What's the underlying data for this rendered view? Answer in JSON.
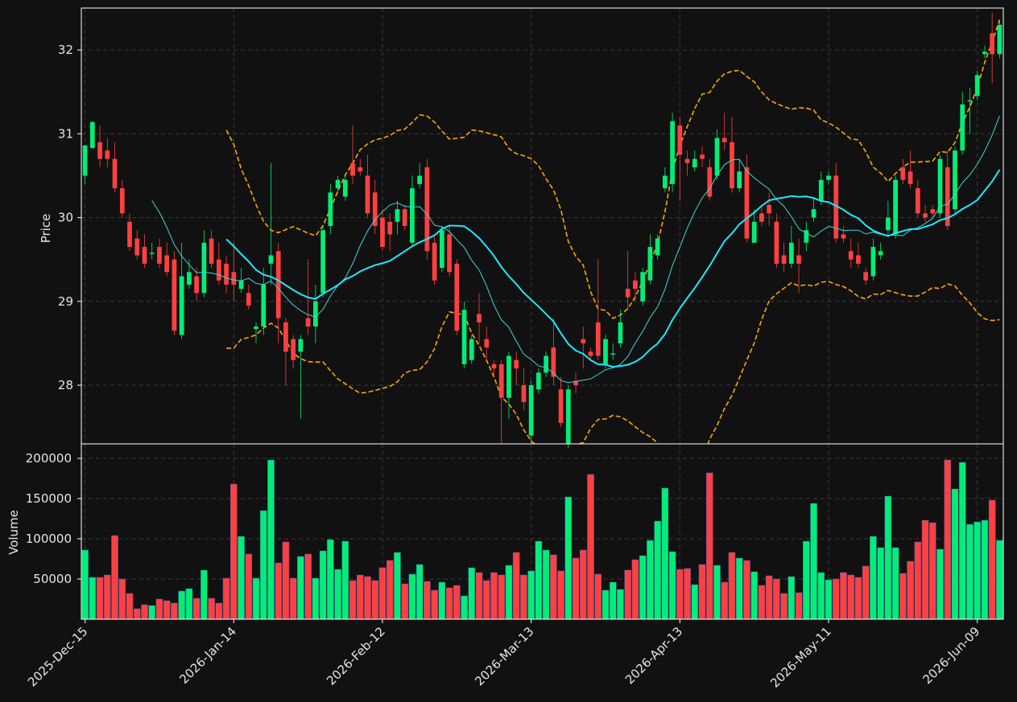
{
  "chart_data": {
    "type": "candlestick",
    "colors": {
      "up": "#00ee76",
      "down": "#ff4040",
      "ma_short": "#3fd6d6",
      "ma_long": "#1de8ff",
      "bands": "#ffa500",
      "background": "#111111",
      "grid": "#3a3a3a",
      "frame": "#ffffff"
    },
    "price_panel": {
      "ylabel": "Price",
      "ylim": [
        27.3,
        32.5
      ],
      "yticks": [
        "28",
        "29",
        "30",
        "31",
        "32"
      ],
      "grid": true
    },
    "volume_panel": {
      "ylabel": "Volume",
      "ylim": [
        0,
        218000
      ],
      "yticks": [
        "50000",
        "100000",
        "150000",
        "200000"
      ],
      "grid": true
    },
    "x_tick_labels": [
      {
        "index": 0,
        "label": "2025-Dec-15"
      },
      {
        "index": 20,
        "label": "2026-Jan-14"
      },
      {
        "index": 40,
        "label": "2026-Feb-12"
      },
      {
        "index": 60,
        "label": "2026-Mar-13"
      },
      {
        "index": 80,
        "label": "2026-Apr-13"
      },
      {
        "index": 100,
        "label": "2026-May-11"
      },
      {
        "index": 120,
        "label": "2026-Jun-09"
      }
    ],
    "candles": [
      [
        30.5,
        30.86,
        30.4,
        30.87,
        86000
      ],
      [
        30.83,
        31.14,
        30.82,
        31.15,
        52000
      ],
      [
        30.9,
        30.7,
        30.6,
        31.1,
        52000
      ],
      [
        30.8,
        30.7,
        30.6,
        30.95,
        55000
      ],
      [
        30.7,
        30.35,
        30.3,
        30.9,
        104000
      ],
      [
        30.35,
        30.05,
        30.0,
        30.45,
        50000
      ],
      [
        29.95,
        29.65,
        29.6,
        30.05,
        32000
      ],
      [
        29.75,
        29.55,
        29.5,
        29.85,
        13000
      ],
      [
        29.65,
        29.45,
        29.4,
        29.8,
        18000
      ],
      [
        29.57,
        29.58,
        29.5,
        29.7,
        17000
      ],
      [
        29.65,
        29.45,
        29.4,
        29.75,
        25000
      ],
      [
        29.55,
        29.35,
        29.3,
        29.7,
        23000
      ],
      [
        29.5,
        28.65,
        28.6,
        29.6,
        20000
      ],
      [
        28.6,
        29.3,
        28.55,
        29.7,
        35000
      ],
      [
        29.2,
        29.35,
        29.15,
        29.5,
        38000
      ],
      [
        29.3,
        29.1,
        29.0,
        29.4,
        26000
      ],
      [
        29.1,
        29.7,
        29.05,
        29.85,
        61000
      ],
      [
        29.75,
        29.45,
        29.4,
        29.85,
        26000
      ],
      [
        29.5,
        29.25,
        29.2,
        29.7,
        20000
      ],
      [
        29.45,
        29.2,
        29.1,
        29.55,
        51000
      ],
      [
        29.35,
        29.2,
        29.0,
        29.7,
        168000
      ],
      [
        29.15,
        29.25,
        29.1,
        29.4,
        103000
      ],
      [
        29.1,
        28.95,
        28.9,
        29.2,
        81000
      ],
      [
        28.67,
        28.7,
        28.5,
        28.75,
        51000
      ],
      [
        28.7,
        29.2,
        28.6,
        29.4,
        135000
      ],
      [
        29.45,
        29.55,
        29.2,
        30.65,
        198000
      ],
      [
        29.6,
        28.8,
        28.5,
        29.7,
        70000
      ],
      [
        28.75,
        28.4,
        28.0,
        28.8,
        96000
      ],
      [
        28.55,
        28.3,
        28.2,
        28.6,
        51000
      ],
      [
        28.4,
        28.55,
        27.6,
        28.6,
        78000
      ],
      [
        28.8,
        28.7,
        28.6,
        29.5,
        81000
      ],
      [
        28.7,
        29.0,
        28.5,
        29.2,
        51000
      ],
      [
        29.1,
        29.85,
        29.05,
        29.9,
        85000
      ],
      [
        29.9,
        30.3,
        29.8,
        30.4,
        99000
      ],
      [
        30.35,
        30.45,
        30.3,
        30.5,
        62000
      ],
      [
        30.25,
        30.45,
        30.2,
        30.5,
        97000
      ],
      [
        30.65,
        30.5,
        30.4,
        31.1,
        48000
      ],
      [
        30.6,
        30.55,
        30.5,
        30.7,
        55000
      ],
      [
        30.5,
        30.05,
        30.0,
        30.75,
        53000
      ],
      [
        30.3,
        29.9,
        29.8,
        30.45,
        48000
      ],
      [
        30.0,
        29.65,
        29.6,
        30.1,
        64000
      ],
      [
        29.95,
        29.8,
        29.6,
        30.05,
        73000
      ],
      [
        29.95,
        30.1,
        29.8,
        30.2,
        83000
      ],
      [
        30.1,
        29.9,
        29.85,
        30.15,
        44000
      ],
      [
        29.7,
        30.35,
        29.65,
        30.5,
        56000
      ],
      [
        30.4,
        30.5,
        30.35,
        30.65,
        68000
      ],
      [
        30.6,
        29.6,
        29.5,
        30.7,
        47000
      ],
      [
        29.7,
        29.25,
        29.2,
        29.8,
        36000
      ],
      [
        29.4,
        29.85,
        29.35,
        29.9,
        46000
      ],
      [
        29.8,
        29.35,
        29.3,
        29.9,
        39000
      ],
      [
        29.45,
        28.65,
        28.6,
        29.5,
        42000
      ],
      [
        28.25,
        28.9,
        28.2,
        29.0,
        29000
      ],
      [
        28.3,
        28.55,
        28.25,
        28.6,
        64000
      ],
      [
        28.85,
        28.75,
        28.5,
        29.1,
        58000
      ],
      [
        28.55,
        28.45,
        28.3,
        28.7,
        48000
      ],
      [
        28.25,
        28.2,
        28.1,
        28.3,
        58000
      ],
      [
        28.25,
        27.85,
        27.3,
        28.3,
        55000
      ],
      [
        27.85,
        28.35,
        27.6,
        28.4,
        67000
      ],
      [
        28.3,
        28.2,
        28.0,
        28.4,
        83000
      ],
      [
        28.0,
        27.8,
        27.7,
        28.2,
        55000
      ],
      [
        27.4,
        28.0,
        27.3,
        28.05,
        60000
      ],
      [
        27.95,
        28.15,
        27.9,
        28.2,
        97000
      ],
      [
        28.15,
        28.35,
        28.1,
        28.4,
        86000
      ],
      [
        28.45,
        28.1,
        28.0,
        28.8,
        80000
      ],
      [
        27.95,
        27.55,
        27.5,
        28.1,
        60000
      ],
      [
        27.3,
        27.95,
        27.25,
        28.0,
        152000
      ],
      [
        28.05,
        28.0,
        27.9,
        28.15,
        76000
      ],
      [
        28.55,
        28.5,
        28.2,
        28.7,
        86000
      ],
      [
        28.4,
        28.35,
        28.3,
        28.45,
        180000
      ],
      [
        28.75,
        28.35,
        28.3,
        29.5,
        56000
      ],
      [
        28.25,
        28.55,
        28.2,
        28.6,
        36000
      ],
      [
        28.37,
        28.38,
        28.3,
        28.5,
        46000
      ],
      [
        28.5,
        28.75,
        28.45,
        28.9,
        37000
      ],
      [
        29.15,
        29.05,
        28.9,
        29.6,
        61000
      ],
      [
        29.25,
        29.15,
        29.0,
        29.35,
        74000
      ],
      [
        29.0,
        29.35,
        28.95,
        29.4,
        79000
      ],
      [
        29.25,
        29.65,
        29.2,
        29.8,
        98000
      ],
      [
        29.55,
        29.75,
        29.5,
        29.8,
        122000
      ],
      [
        30.35,
        30.5,
        30.3,
        30.6,
        163000
      ],
      [
        30.4,
        31.15,
        30.3,
        31.25,
        84000
      ],
      [
        31.1,
        30.75,
        30.2,
        31.2,
        62000
      ],
      [
        30.7,
        30.65,
        30.5,
        30.8,
        63000
      ],
      [
        30.6,
        30.7,
        30.55,
        30.8,
        43000
      ],
      [
        30.75,
        30.7,
        30.6,
        30.85,
        68000
      ],
      [
        30.6,
        30.25,
        30.2,
        30.7,
        182000
      ],
      [
        30.5,
        30.95,
        30.45,
        31.05,
        67000
      ],
      [
        30.95,
        30.9,
        30.8,
        31.25,
        46000
      ],
      [
        30.9,
        30.35,
        30.3,
        31.2,
        83000
      ],
      [
        30.35,
        30.55,
        30.3,
        30.7,
        76000
      ],
      [
        30.6,
        29.75,
        29.7,
        30.75,
        73000
      ],
      [
        29.7,
        29.95,
        29.7,
        30.1,
        59000
      ],
      [
        30.05,
        29.95,
        29.9,
        30.15,
        42000
      ],
      [
        30.15,
        30.05,
        29.9,
        30.3,
        54000
      ],
      [
        29.95,
        29.45,
        29.4,
        30.05,
        50000
      ],
      [
        29.55,
        29.45,
        29.35,
        29.7,
        32000
      ],
      [
        29.45,
        29.7,
        29.4,
        29.9,
        53000
      ],
      [
        29.55,
        29.45,
        29.1,
        29.75,
        33000
      ],
      [
        29.7,
        29.85,
        29.6,
        29.95,
        97000
      ],
      [
        30.0,
        30.1,
        29.95,
        30.25,
        144000
      ],
      [
        30.2,
        30.45,
        30.15,
        30.55,
        58000
      ],
      [
        30.45,
        30.5,
        30.4,
        30.55,
        49000
      ],
      [
        30.5,
        29.75,
        29.7,
        30.65,
        50000
      ],
      [
        29.8,
        29.75,
        29.7,
        29.9,
        58000
      ],
      [
        29.6,
        29.5,
        29.4,
        29.75,
        55000
      ],
      [
        29.55,
        29.45,
        29.4,
        29.7,
        52000
      ],
      [
        29.35,
        29.25,
        29.2,
        29.4,
        66000
      ],
      [
        29.3,
        29.65,
        29.25,
        29.75,
        103000
      ],
      [
        29.55,
        29.6,
        29.5,
        29.7,
        89000
      ],
      [
        29.85,
        30.0,
        29.8,
        30.2,
        153000
      ],
      [
        29.8,
        30.45,
        29.75,
        30.5,
        89000
      ],
      [
        30.6,
        30.45,
        30.4,
        30.7,
        57000
      ],
      [
        30.55,
        30.4,
        30.35,
        30.8,
        72000
      ],
      [
        30.35,
        30.05,
        30.0,
        30.45,
        96000
      ],
      [
        30.05,
        30.0,
        29.95,
        30.15,
        123000
      ],
      [
        30.1,
        30.05,
        30.0,
        30.15,
        120000
      ],
      [
        30.05,
        30.7,
        30.0,
        30.75,
        87000
      ],
      [
        30.6,
        29.9,
        29.85,
        30.8,
        198000
      ],
      [
        30.1,
        30.8,
        30.05,
        30.85,
        162000
      ],
      [
        30.8,
        31.35,
        30.75,
        31.5,
        195000
      ],
      [
        31.4,
        31.4,
        31.0,
        31.55,
        118000
      ],
      [
        31.45,
        31.7,
        31.4,
        31.75,
        121000
      ],
      [
        31.95,
        31.98,
        31.9,
        32.05,
        123000
      ],
      [
        32.2,
        31.95,
        31.6,
        32.45,
        148000
      ],
      [
        31.95,
        32.3,
        31.9,
        32.35,
        98000
      ]
    ]
  }
}
